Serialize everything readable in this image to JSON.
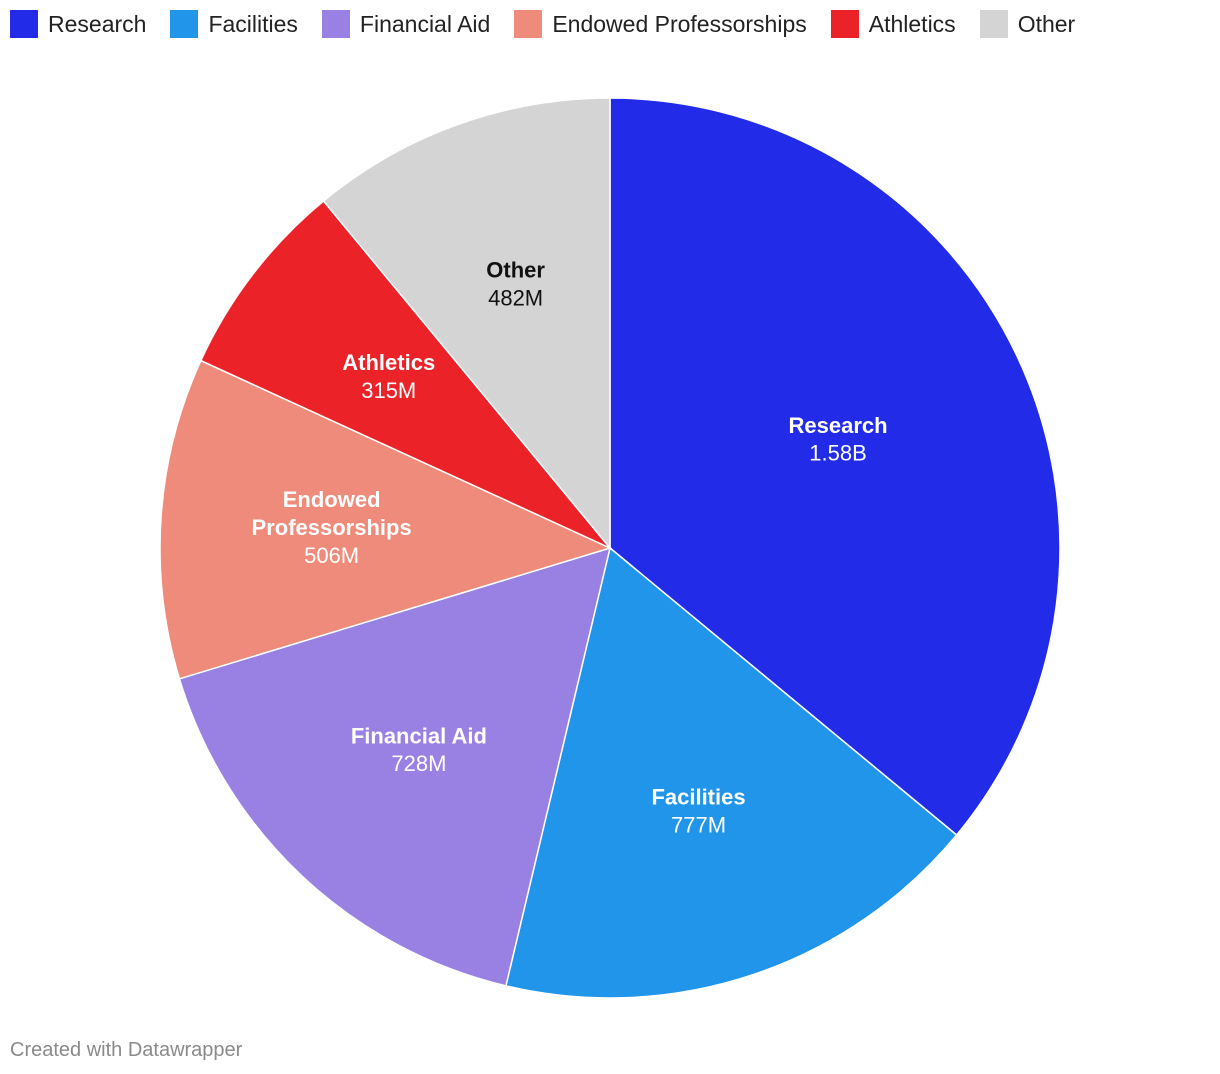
{
  "chart_data": {
    "type": "pie",
    "slices": [
      {
        "name": "Research",
        "value": 1580000000,
        "label": "1.58B",
        "color": "#222ce8",
        "label_color": "#ffffff"
      },
      {
        "name": "Facilities",
        "value": 777000000,
        "label": "777M",
        "color": "#2195ea",
        "label_color": "#ffffff"
      },
      {
        "name": "Financial Aid",
        "value": 728000000,
        "label": "728M",
        "color": "#9881e2",
        "label_color": "#ffffff"
      },
      {
        "name": "Endowed Professorships",
        "value": 506000000,
        "label": "506M",
        "color": "#ee8b7a",
        "label_color": "#ffffff"
      },
      {
        "name": "Athletics",
        "value": 315000000,
        "label": "315M",
        "color": "#eb2329",
        "label_color": "#ffffff"
      },
      {
        "name": "Other",
        "value": 482000000,
        "label": "482M",
        "color": "#d4d4d4",
        "label_color": "#111111"
      }
    ],
    "legend_position": "top-left"
  },
  "legend": {
    "items": [
      {
        "label": "Research",
        "color": "#222ce8"
      },
      {
        "label": "Facilities",
        "color": "#2195ea"
      },
      {
        "label": "Financial Aid",
        "color": "#9881e2"
      },
      {
        "label": "Endowed Professorships",
        "color": "#ee8b7a"
      },
      {
        "label": "Athletics",
        "color": "#eb2329"
      },
      {
        "label": "Other",
        "color": "#d4d4d4"
      }
    ]
  },
  "footer": {
    "credit": "Created with Datawrapper"
  }
}
